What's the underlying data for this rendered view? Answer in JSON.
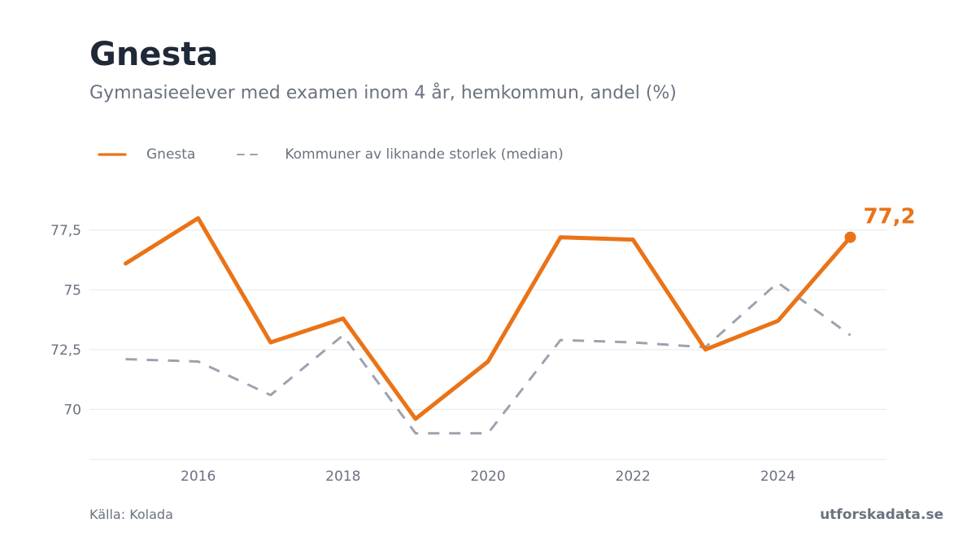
{
  "header": {
    "title": "Gnesta",
    "subtitle": "Gymnasieelever med examen inom 4 år, hemkommun, andel (%)"
  },
  "footer": {
    "source": "Källa: Kolada",
    "brand": "utforskadata.se"
  },
  "chart_data": {
    "type": "line",
    "title": "",
    "xlabel": "",
    "ylabel": "",
    "x": [
      2015,
      2016,
      2017,
      2018,
      2019,
      2020,
      2021,
      2022,
      2023,
      2024,
      2025
    ],
    "xticks": [
      2016,
      2018,
      2020,
      2022,
      2024
    ],
    "xtick_labels": [
      "2016",
      "2018",
      "2020",
      "2022",
      "2024"
    ],
    "yticks": [
      70,
      72.5,
      75,
      77.5
    ],
    "ytick_labels": [
      "70",
      "72,5",
      "75",
      "77,5"
    ],
    "xlim": [
      2014.5,
      2025.5
    ],
    "ylim": [
      67.9,
      79.3
    ],
    "grid": true,
    "legend_position": "top-left",
    "series": [
      {
        "name": "Gnesta",
        "color": "#ea7317",
        "style": "solid",
        "values": [
          76.1,
          78.0,
          72.8,
          73.8,
          69.6,
          72.0,
          77.2,
          77.1,
          72.5,
          73.7,
          77.2
        ],
        "end_label": "77,2"
      },
      {
        "name": "Kommuner av liknande storlek (median)",
        "color": "#9ca3af",
        "style": "dashed",
        "values": [
          72.1,
          72.0,
          70.6,
          73.1,
          69.0,
          69.0,
          72.9,
          72.8,
          72.6,
          75.3,
          73.1
        ]
      }
    ]
  }
}
